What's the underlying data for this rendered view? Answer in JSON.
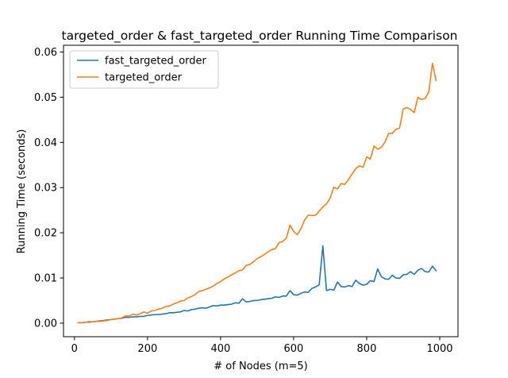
{
  "chart_data": {
    "type": "line",
    "title": "targeted_order & fast_targeted_order Running Time Comparison",
    "xlabel": "# of Nodes (m=5)",
    "ylabel": "Running Time (seconds)",
    "xlim": [
      -30,
      1050
    ],
    "ylim": [
      -0.003,
      0.0615
    ],
    "xticks": [
      0,
      200,
      400,
      600,
      800,
      1000
    ],
    "xtick_labels": [
      "0",
      "200",
      "400",
      "600",
      "800",
      "1000"
    ],
    "yticks": [
      0.0,
      0.01,
      0.02,
      0.03,
      0.04,
      0.05,
      0.06
    ],
    "ytick_labels": [
      "0.00",
      "0.01",
      "0.02",
      "0.03",
      "0.04",
      "0.05",
      "0.06"
    ],
    "legend_position": "top-left",
    "grid": false,
    "x": [
      10,
      20,
      30,
      40,
      50,
      60,
      70,
      80,
      90,
      100,
      110,
      120,
      130,
      140,
      150,
      160,
      170,
      180,
      190,
      200,
      210,
      220,
      230,
      240,
      250,
      260,
      270,
      280,
      290,
      300,
      310,
      320,
      330,
      340,
      350,
      360,
      370,
      380,
      390,
      400,
      410,
      420,
      430,
      440,
      450,
      460,
      470,
      480,
      490,
      500,
      510,
      520,
      530,
      540,
      550,
      560,
      570,
      580,
      590,
      600,
      610,
      620,
      630,
      640,
      650,
      660,
      670,
      680,
      690,
      700,
      710,
      720,
      730,
      740,
      750,
      760,
      770,
      780,
      790,
      800,
      810,
      820,
      830,
      840,
      850,
      860,
      870,
      880,
      890,
      900,
      910,
      920,
      930,
      940,
      950,
      960,
      970,
      980,
      990
    ],
    "series": [
      {
        "name": "fast_targeted_order",
        "color": "#1f77b4",
        "values": [
          0.0001,
          0.0001,
          0.0002,
          0.0003,
          0.0003,
          0.0004,
          0.0005,
          0.0006,
          0.0007,
          0.0008,
          0.0009,
          0.001,
          0.0011,
          0.0013,
          0.0013,
          0.0014,
          0.0014,
          0.0015,
          0.0015,
          0.0017,
          0.0018,
          0.0019,
          0.0019,
          0.002,
          0.0021,
          0.0023,
          0.0023,
          0.0024,
          0.0025,
          0.0028,
          0.0027,
          0.003,
          0.0031,
          0.0033,
          0.0034,
          0.0033,
          0.0036,
          0.0039,
          0.0038,
          0.004,
          0.004,
          0.0041,
          0.0042,
          0.0045,
          0.0044,
          0.0054,
          0.0047,
          0.0048,
          0.005,
          0.005,
          0.0052,
          0.0053,
          0.0054,
          0.0055,
          0.0058,
          0.0057,
          0.006,
          0.006,
          0.0072,
          0.0063,
          0.0062,
          0.0066,
          0.0069,
          0.0068,
          0.0077,
          0.008,
          0.0085,
          0.0171,
          0.0072,
          0.0075,
          0.0073,
          0.0091,
          0.0081,
          0.008,
          0.0083,
          0.0081,
          0.0095,
          0.0088,
          0.0084,
          0.0086,
          0.0094,
          0.0092,
          0.012,
          0.0103,
          0.0098,
          0.0097,
          0.0106,
          0.01,
          0.0099,
          0.0107,
          0.0108,
          0.0114,
          0.0108,
          0.0117,
          0.0121,
          0.0114,
          0.0113,
          0.0126,
          0.0116
        ]
      },
      {
        "name": "targeted_order",
        "color": "#ff7f0e",
        "values": [
          0.0001,
          0.0001,
          0.0002,
          0.0002,
          0.0003,
          0.0004,
          0.0004,
          0.0005,
          0.0006,
          0.0008,
          0.0009,
          0.001,
          0.0012,
          0.0016,
          0.0016,
          0.002,
          0.0018,
          0.0021,
          0.0025,
          0.0022,
          0.0027,
          0.0028,
          0.0031,
          0.0033,
          0.0037,
          0.0038,
          0.0042,
          0.0045,
          0.0049,
          0.005,
          0.0056,
          0.0059,
          0.0063,
          0.007,
          0.0072,
          0.0075,
          0.0078,
          0.0082,
          0.0088,
          0.0092,
          0.0098,
          0.0102,
          0.0107,
          0.0111,
          0.0116,
          0.0118,
          0.0128,
          0.013,
          0.0136,
          0.0143,
          0.0147,
          0.0152,
          0.0158,
          0.0163,
          0.0165,
          0.0178,
          0.0181,
          0.0188,
          0.0217,
          0.0203,
          0.0196,
          0.0209,
          0.0228,
          0.0239,
          0.0238,
          0.0239,
          0.0248,
          0.0257,
          0.0264,
          0.0277,
          0.0301,
          0.0297,
          0.0309,
          0.0307,
          0.0318,
          0.033,
          0.0342,
          0.0348,
          0.0345,
          0.0368,
          0.0363,
          0.0392,
          0.0385,
          0.0389,
          0.0401,
          0.042,
          0.042,
          0.0429,
          0.0432,
          0.0474,
          0.0477,
          0.0473,
          0.0466,
          0.05,
          0.0495,
          0.0497,
          0.0512,
          0.0575,
          0.0537
        ]
      }
    ]
  }
}
